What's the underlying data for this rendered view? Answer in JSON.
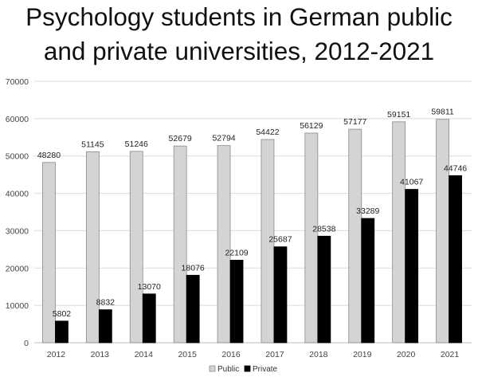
{
  "chart_data": {
    "type": "bar",
    "title_lines": [
      "Psychology students in German public",
      "and private universities, 2012-2021"
    ],
    "categories": [
      "2012",
      "2013",
      "2014",
      "2015",
      "2016",
      "2017",
      "2018",
      "2019",
      "2020",
      "2021"
    ],
    "series": [
      {
        "name": "Public",
        "color": "#d4d4d4",
        "values": [
          48280,
          51145,
          51246,
          52679,
          52794,
          54422,
          56129,
          57177,
          59151,
          59811
        ]
      },
      {
        "name": "Private",
        "color": "#000000",
        "values": [
          5802,
          8832,
          13070,
          18076,
          22109,
          25687,
          28538,
          33289,
          41067,
          44746
        ]
      }
    ],
    "ylim": [
      0,
      70000
    ],
    "yticks": [
      0,
      10000,
      20000,
      30000,
      40000,
      50000,
      60000,
      70000
    ],
    "grid": true,
    "legend": "bottom-center",
    "xlabel": "",
    "ylabel": ""
  }
}
